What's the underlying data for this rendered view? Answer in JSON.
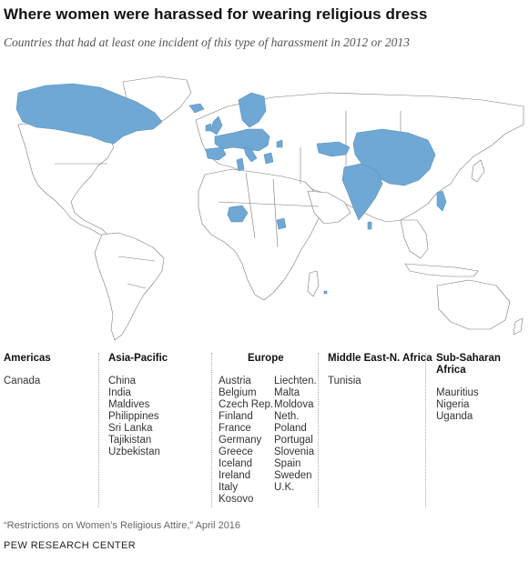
{
  "title": "Where women were harassed for wearing religious dress",
  "subtitle": "Countries that had at least one incident of this type of harassment in 2012 or 2013",
  "colors": {
    "highlight": "#6fa8d4",
    "land": "#ffffff",
    "border": "#7a7a7a"
  },
  "regions": [
    {
      "title": "Americas",
      "countries": [
        "Canada"
      ]
    },
    {
      "title": "Asia-Pacific",
      "countries": [
        "China",
        "India",
        "Maldives",
        "Philippines",
        "Sri Lanka",
        "Tajikistan",
        "Uzbekistan"
      ]
    },
    {
      "title": "Europe",
      "col1": [
        "Austria",
        "Belgium",
        "Czech Rep.",
        "Finland",
        "France",
        "Germany",
        "Greece",
        "Iceland",
        "Ireland",
        "Italy",
        "Kosovo"
      ],
      "col2": [
        "Liechten.",
        "Malta",
        "Moldova",
        "Neth.",
        "Poland",
        "Portugal",
        "Slovenia",
        "Spain",
        "Sweden",
        "U.K."
      ]
    },
    {
      "title": "Middle East-N. Africa",
      "countries": [
        "Tunisia"
      ]
    },
    {
      "title": "Sub-Saharan Africa",
      "countries": [
        "Mauritius",
        "Nigeria",
        "Uganda"
      ]
    }
  ],
  "source": "“Restrictions on Women’s Religious Attire,” April 2016",
  "credit": "PEW RESEARCH CENTER"
}
